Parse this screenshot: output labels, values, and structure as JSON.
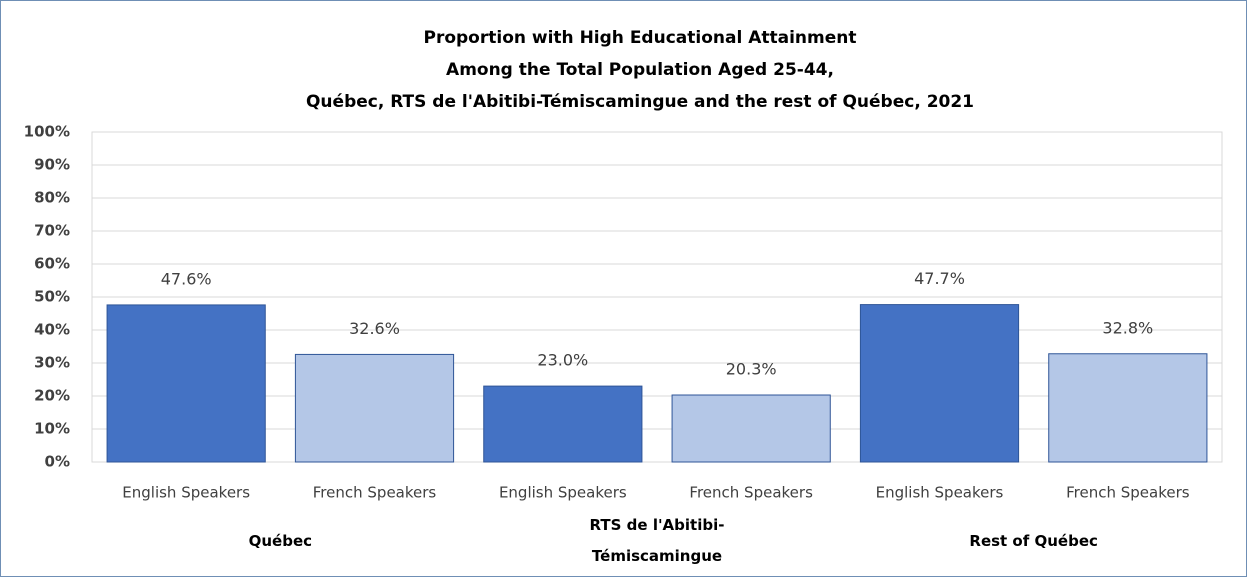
{
  "chart_data": {
    "type": "bar",
    "title": [
      "Proportion with High Educational Attainment",
      "Among the Total Population Aged 25-44,",
      "Québec, RTS de l'Abitibi-Témiscamingue and the rest of Québec, 2021"
    ],
    "groups": [
      {
        "name": "Québec",
        "categories": [
          "English Speakers",
          "French Speakers"
        ],
        "values": [
          47.6,
          32.6
        ],
        "value_labels": [
          "47.6%",
          "32.6%"
        ]
      },
      {
        "name": "RTS de l'Abitibi-Témiscamingue",
        "categories": [
          "English Speakers",
          "French Speakers"
        ],
        "values": [
          23.0,
          20.3
        ],
        "value_labels": [
          "23.0%",
          "20.3%"
        ]
      },
      {
        "name": "Rest of Québec",
        "categories": [
          "English Speakers",
          "French Speakers"
        ],
        "values": [
          47.7,
          32.8
        ],
        "value_labels": [
          "47.7%",
          "32.8%"
        ]
      }
    ],
    "colors": [
      "#4472c4",
      "#b4c7e7"
    ],
    "ylim": [
      0,
      100
    ],
    "yticks": [
      {
        "value": 0,
        "label": "0%"
      },
      {
        "value": 10,
        "label": "10%"
      },
      {
        "value": 20,
        "label": "20%"
      },
      {
        "value": 30,
        "label": "30%"
      },
      {
        "value": 40,
        "label": "40%"
      },
      {
        "value": 50,
        "label": "50%"
      },
      {
        "value": 60,
        "label": "60%"
      },
      {
        "value": 70,
        "label": "70%"
      },
      {
        "value": 80,
        "label": "80%"
      },
      {
        "value": 90,
        "label": "90%"
      },
      {
        "value": 100,
        "label": "100%"
      }
    ],
    "grid": true
  }
}
